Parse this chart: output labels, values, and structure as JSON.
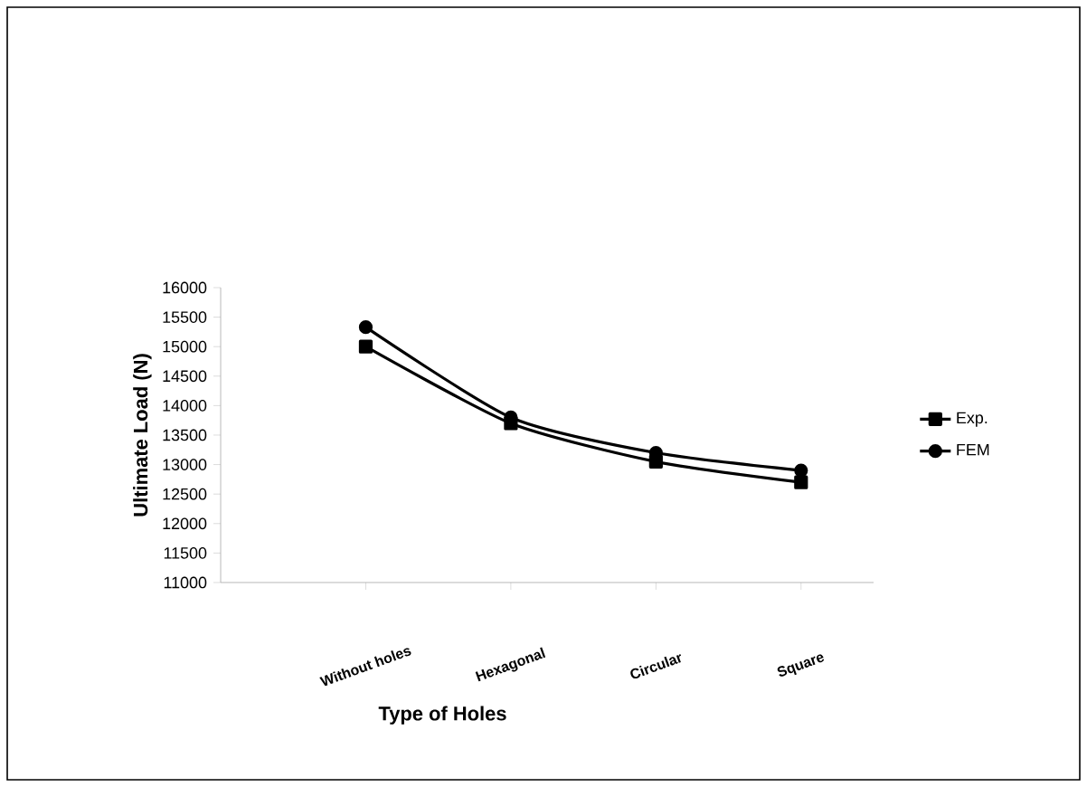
{
  "chart_data": {
    "type": "line",
    "xlabel": "Type of Holes",
    "ylabel": "Ultimate Load  (N)",
    "categories": [
      "Without holes",
      "Hexagonal",
      "Circular",
      "Square"
    ],
    "series": [
      {
        "name": "Exp.",
        "color": "#000000",
        "marker": "square",
        "values": [
          15000,
          13700,
          13050,
          12700
        ]
      },
      {
        "name": "FEM",
        "color": "#000000",
        "marker": "circle",
        "values": [
          15330,
          13800,
          13200,
          12900
        ]
      }
    ],
    "ylim": [
      11000,
      16000
    ],
    "yticks": [
      11000,
      11500,
      12000,
      12500,
      13000,
      13500,
      14000,
      14500,
      15000,
      15500,
      16000
    ],
    "legend": "right",
    "line_style": "solid"
  }
}
